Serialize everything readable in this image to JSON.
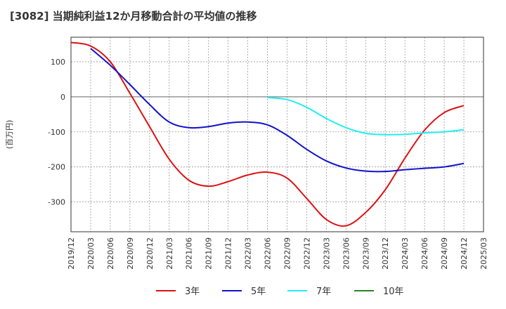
{
  "chart_data": {
    "type": "line",
    "title": "[3082]  当期純利益12か月移動合計の平均値の推移",
    "ylabel": "(百万円)",
    "xlabel": "",
    "ylim": [
      -385,
      170
    ],
    "yticks": [
      100,
      0,
      -100,
      -200,
      -300
    ],
    "x_tick_labels": [
      "2019/12",
      "2020/03",
      "2020/06",
      "2020/09",
      "2020/12",
      "2021/03",
      "2021/06",
      "2021/09",
      "2021/12",
      "2022/03",
      "2022/06",
      "2022/09",
      "2022/12",
      "2023/03",
      "2023/06",
      "2023/09",
      "2023/12",
      "2024/03",
      "2024/06",
      "2024/09",
      "2024/12",
      "2025/03"
    ],
    "grid": true,
    "legend_position": "bottom",
    "series": [
      {
        "name": "3年",
        "color": "#dd1111",
        "x": [
          "2019/12",
          "2020/03",
          "2020/06",
          "2020/09",
          "2020/12",
          "2021/03",
          "2021/06",
          "2021/09",
          "2021/12",
          "2022/03",
          "2022/06",
          "2022/09",
          "2022/12",
          "2023/03",
          "2023/06",
          "2023/09",
          "2023/12",
          "2024/03",
          "2024/06",
          "2024/09",
          "2024/12"
        ],
        "values": [
          155,
          145,
          100,
          10,
          -85,
          -178,
          -238,
          -255,
          -242,
          -223,
          -215,
          -232,
          -290,
          -350,
          -368,
          -330,
          -265,
          -175,
          -95,
          -45,
          -25
        ]
      },
      {
        "name": "5年",
        "color": "#1111cc",
        "x": [
          "2020/03",
          "2020/06",
          "2020/09",
          "2020/12",
          "2021/03",
          "2021/06",
          "2021/09",
          "2021/12",
          "2022/03",
          "2022/06",
          "2022/09",
          "2022/12",
          "2023/03",
          "2023/06",
          "2023/09",
          "2023/12",
          "2024/03",
          "2024/06",
          "2024/09",
          "2024/12"
        ],
        "values": [
          138,
          90,
          35,
          -22,
          -72,
          -88,
          -85,
          -75,
          -72,
          -80,
          -110,
          -150,
          -183,
          -203,
          -212,
          -213,
          -208,
          -204,
          -200,
          -190
        ]
      },
      {
        "name": "7年",
        "color": "#22eeee",
        "x": [
          "2022/06",
          "2022/09",
          "2022/12",
          "2023/03",
          "2023/06",
          "2023/09",
          "2023/12",
          "2024/03",
          "2024/06",
          "2024/09",
          "2024/12"
        ],
        "values": [
          -2,
          -8,
          -30,
          -62,
          -88,
          -104,
          -108,
          -107,
          -103,
          -100,
          -94
        ]
      },
      {
        "name": "10年",
        "color": "#228822",
        "x": [],
        "values": []
      }
    ]
  }
}
